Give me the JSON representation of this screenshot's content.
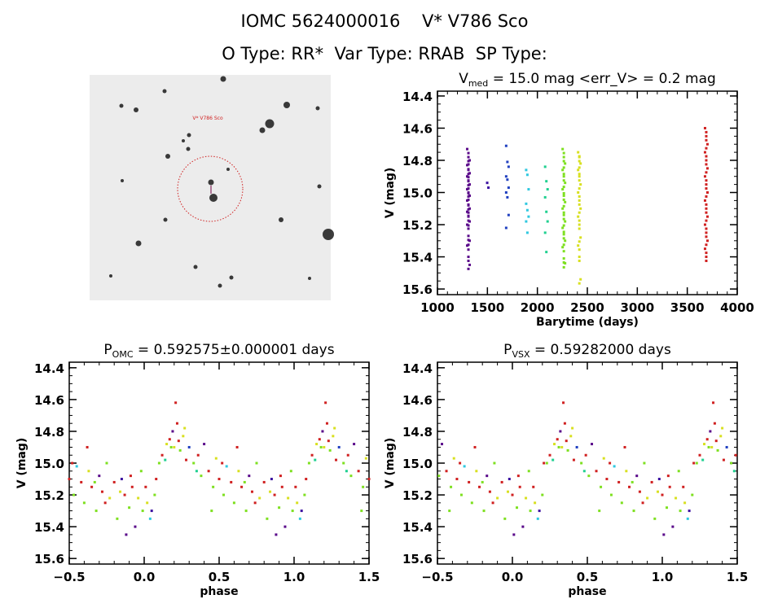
{
  "header": {
    "title": "IOMC 5624000016    V* V786 Sco",
    "subtitle": "O Type: RR*  Var Type: RRAB  SP Type:"
  },
  "image_panel": {
    "target_label": "V* V786 Sco",
    "colors": {
      "background": "#ececec",
      "star": "#1a1a1a",
      "circle": "#d02020"
    }
  },
  "season_colors": [
    "#5a0a8a",
    "#3a10a0",
    "#2040c0",
    "#30c8e0",
    "#20d090",
    "#7ee020",
    "#d8e020",
    "#d02020"
  ],
  "chart_data": [
    {
      "type": "scatter",
      "title": {
        "main": "V",
        "sub": "med",
        "rest": " = 15.0 mag <err_V> = 0.2 mag"
      },
      "xlabel": "Barytime (days)",
      "ylabel": "V (mag)",
      "xlim": [
        1000,
        4000
      ],
      "ylim": [
        15.635,
        14.37
      ],
      "y_inverted": true,
      "xticks": [
        1000,
        1500,
        2000,
        2500,
        3000,
        3500,
        4000
      ],
      "yticks": [
        "14.4",
        "14.6",
        "14.8",
        "15.0",
        "15.2",
        "15.4",
        "15.6"
      ],
      "seasons": [
        {
          "t": 1310,
          "color_index": 0,
          "values": [
            14.73,
            14.78,
            14.8,
            14.83,
            14.86,
            14.88,
            14.9,
            14.93,
            14.95,
            14.98,
            15.0,
            15.02,
            15.05,
            15.08,
            15.1,
            15.12,
            15.15,
            15.18,
            15.2,
            15.27,
            15.3,
            15.33,
            15.4,
            15.45
          ]
        },
        {
          "t": 1510,
          "color_index": 1,
          "values": [
            14.94,
            14.97
          ]
        },
        {
          "t": 1700,
          "color_index": 2,
          "values": [
            14.71,
            14.81,
            14.84,
            14.9,
            14.92,
            14.97,
            15.0,
            15.03,
            15.14,
            15.22
          ]
        },
        {
          "t": 1900,
          "color_index": 3,
          "values": [
            14.86,
            14.89,
            14.98,
            15.07,
            15.11,
            15.15,
            15.18,
            15.25
          ]
        },
        {
          "t": 2090,
          "color_index": 4,
          "values": [
            14.84,
            14.93,
            14.98,
            15.03,
            15.12,
            15.18,
            15.25,
            15.37
          ]
        },
        {
          "t": 2265,
          "color_index": 5,
          "values": [
            14.73,
            14.78,
            14.82,
            14.86,
            14.9,
            14.94,
            14.98,
            15.02,
            15.06,
            15.1,
            15.14,
            15.18,
            15.22,
            15.26,
            15.3,
            15.34,
            15.41,
            15.44
          ]
        },
        {
          "t": 2420,
          "color_index": 6,
          "values": [
            14.75,
            14.78,
            14.82,
            14.86,
            14.9,
            14.95,
            15.0,
            15.05,
            15.1,
            15.15,
            15.2,
            15.28,
            15.33,
            15.4,
            15.54
          ]
        },
        {
          "t": 3690,
          "color_index": 7,
          "values": [
            14.6,
            14.65,
            14.7,
            14.75,
            14.8,
            14.85,
            14.9,
            14.95,
            15.0,
            15.05,
            15.1,
            15.15,
            15.2,
            15.25,
            15.3,
            15.35,
            15.4
          ]
        }
      ]
    },
    {
      "type": "scatter",
      "title": {
        "main": "P",
        "sub": "OMC",
        "rest": " = 0.592575±0.000001 days"
      },
      "xlabel": "phase",
      "ylabel": "V (mag)",
      "xlim": [
        -0.5,
        1.5
      ],
      "ylim": [
        15.635,
        14.365
      ],
      "y_inverted": true,
      "xticks": [
        "-0.5",
        "0.0",
        "0.5",
        "1.0",
        "1.5"
      ],
      "yticks": [
        "14.4",
        "14.6",
        "14.8",
        "15.0",
        "15.2",
        "15.4",
        "15.6"
      ],
      "points": [
        [
          0.02,
          15.25,
          6
        ],
        [
          0.05,
          15.3,
          1
        ],
        [
          0.08,
          15.1,
          7
        ],
        [
          0.1,
          15.0,
          5
        ],
        [
          0.12,
          14.95,
          7
        ],
        [
          0.15,
          14.88,
          6
        ],
        [
          0.17,
          14.85,
          7
        ],
        [
          0.19,
          14.8,
          0
        ],
        [
          0.2,
          14.9,
          6
        ],
        [
          0.22,
          14.75,
          7
        ],
        [
          0.24,
          14.92,
          5
        ],
        [
          0.26,
          14.83,
          6
        ],
        [
          0.28,
          14.98,
          7
        ],
        [
          0.3,
          14.9,
          2
        ],
        [
          0.33,
          15.0,
          5
        ],
        [
          0.36,
          14.95,
          7
        ],
        [
          0.38,
          15.08,
          5
        ],
        [
          0.4,
          14.88,
          0
        ],
        [
          0.43,
          15.05,
          7
        ],
        [
          0.46,
          15.15,
          5
        ],
        [
          0.48,
          14.97,
          6
        ],
        [
          0.5,
          15.1,
          7
        ],
        [
          0.53,
          15.2,
          5
        ],
        [
          0.55,
          15.02,
          3
        ],
        [
          0.58,
          15.12,
          7
        ],
        [
          0.6,
          15.25,
          5
        ],
        [
          0.63,
          15.05,
          6
        ],
        [
          0.65,
          15.15,
          7
        ],
        [
          0.68,
          15.3,
          5
        ],
        [
          0.7,
          15.08,
          0
        ],
        [
          0.72,
          15.18,
          7
        ],
        [
          0.75,
          15.0,
          5
        ],
        [
          0.77,
          15.22,
          6
        ],
        [
          0.8,
          15.12,
          7
        ],
        [
          0.82,
          15.35,
          5
        ],
        [
          0.85,
          15.1,
          1
        ],
        [
          0.87,
          15.2,
          7
        ],
        [
          0.9,
          15.28,
          5
        ],
        [
          0.92,
          15.15,
          7
        ],
        [
          0.94,
          15.4,
          0
        ],
        [
          0.96,
          15.22,
          6
        ],
        [
          0.98,
          15.05,
          5
        ],
        [
          0.01,
          15.15,
          7
        ],
        [
          0.04,
          15.35,
          3
        ],
        [
          0.07,
          15.2,
          5
        ],
        [
          0.14,
          14.98,
          4
        ],
        [
          0.21,
          14.62,
          7
        ],
        [
          0.45,
          15.3,
          5
        ],
        [
          0.62,
          14.9,
          7
        ],
        [
          0.88,
          15.45,
          0
        ],
        [
          0.18,
          14.9,
          5
        ],
        [
          0.23,
          14.86,
          7
        ],
        [
          0.27,
          14.78,
          6
        ],
        [
          0.35,
          15.05,
          4
        ],
        [
          0.52,
          15.0,
          7
        ],
        [
          0.67,
          15.12,
          5
        ],
        [
          0.74,
          15.25,
          7
        ],
        [
          0.84,
          15.18,
          6
        ],
        [
          0.91,
          15.08,
          7
        ],
        [
          0.99,
          15.3,
          5
        ]
      ]
    },
    {
      "type": "scatter",
      "title": {
        "main": "P",
        "sub": "VSX",
        "rest": " = 0.59282000 days"
      },
      "xlabel": "phase",
      "ylabel": "V (mag)",
      "xlim": [
        -0.5,
        1.5
      ],
      "ylim": [
        15.635,
        14.365
      ],
      "y_inverted": true,
      "xticks": [
        "-0.5",
        "0.0",
        "0.5",
        "1.0",
        "1.5"
      ],
      "yticks": [
        "14.4",
        "14.6",
        "14.8",
        "15.0",
        "15.2",
        "15.4",
        "15.6"
      ],
      "points": [
        [
          0.15,
          15.25,
          6
        ],
        [
          0.18,
          15.3,
          1
        ],
        [
          0.21,
          15.0,
          7
        ],
        [
          0.23,
          15.0,
          5
        ],
        [
          0.25,
          14.95,
          7
        ],
        [
          0.28,
          14.88,
          6
        ],
        [
          0.3,
          14.85,
          7
        ],
        [
          0.32,
          14.8,
          0
        ],
        [
          0.33,
          14.9,
          6
        ],
        [
          0.35,
          14.75,
          7
        ],
        [
          0.37,
          14.92,
          5
        ],
        [
          0.39,
          14.83,
          6
        ],
        [
          0.41,
          14.98,
          7
        ],
        [
          0.43,
          14.9,
          2
        ],
        [
          0.46,
          15.0,
          5
        ],
        [
          0.49,
          14.95,
          7
        ],
        [
          0.51,
          15.08,
          5
        ],
        [
          0.53,
          14.88,
          0
        ],
        [
          0.56,
          15.05,
          7
        ],
        [
          0.59,
          15.15,
          5
        ],
        [
          0.61,
          14.97,
          6
        ],
        [
          0.63,
          15.1,
          7
        ],
        [
          0.66,
          15.2,
          5
        ],
        [
          0.68,
          15.02,
          3
        ],
        [
          0.71,
          15.12,
          7
        ],
        [
          0.73,
          15.25,
          5
        ],
        [
          0.76,
          15.05,
          6
        ],
        [
          0.78,
          15.15,
          7
        ],
        [
          0.81,
          15.3,
          5
        ],
        [
          0.83,
          15.08,
          0
        ],
        [
          0.85,
          15.18,
          7
        ],
        [
          0.88,
          15.0,
          5
        ],
        [
          0.9,
          15.22,
          6
        ],
        [
          0.93,
          15.12,
          7
        ],
        [
          0.95,
          15.35,
          5
        ],
        [
          0.98,
          15.1,
          1
        ],
        [
          0.0,
          15.2,
          7
        ],
        [
          0.03,
          15.28,
          5
        ],
        [
          0.05,
          15.15,
          7
        ],
        [
          0.07,
          15.4,
          0
        ],
        [
          0.09,
          15.22,
          6
        ],
        [
          0.11,
          15.05,
          5
        ],
        [
          0.14,
          15.15,
          7
        ],
        [
          0.17,
          15.35,
          3
        ],
        [
          0.2,
          15.2,
          5
        ],
        [
          0.27,
          14.98,
          4
        ],
        [
          0.34,
          14.62,
          7
        ],
        [
          0.58,
          15.3,
          5
        ],
        [
          0.75,
          14.9,
          7
        ],
        [
          0.01,
          15.45,
          0
        ],
        [
          0.31,
          14.9,
          5
        ],
        [
          0.36,
          14.86,
          7
        ],
        [
          0.4,
          14.78,
          6
        ],
        [
          0.48,
          15.05,
          4
        ],
        [
          0.65,
          15.0,
          7
        ],
        [
          0.8,
          15.12,
          5
        ],
        [
          0.87,
          15.25,
          7
        ],
        [
          0.97,
          15.18,
          6
        ],
        [
          0.04,
          15.08,
          7
        ],
        [
          0.12,
          15.3,
          5
        ]
      ]
    }
  ]
}
